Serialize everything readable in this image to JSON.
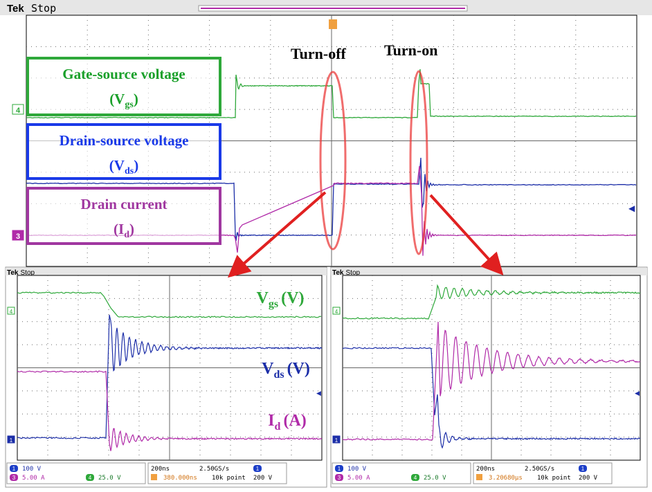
{
  "top": {
    "brand": "Tek",
    "state": "Stop",
    "markers": [
      "4",
      "3"
    ],
    "turn_off": "Turn-off",
    "turn_on": "Turn-on",
    "boxes": [
      {
        "title": "Gate-source voltage",
        "pre": "(V",
        "sub": "gs",
        "post": ")"
      },
      {
        "title": "Drain-source voltage",
        "pre": "(V",
        "sub": "ds",
        "post": ")"
      },
      {
        "title": "Drain current",
        "pre": "(I",
        "sub": "d",
        "post": ")"
      }
    ]
  },
  "panels": [
    {
      "brand": "Tek",
      "state": "Stop",
      "markers": [
        "4",
        "1"
      ],
      "traces": [
        {
          "symbol": "V",
          "sub": "gs",
          "unit": "(V)"
        },
        {
          "symbol": "V",
          "sub": "ds",
          "unit": "(V)"
        },
        {
          "symbol": "I",
          "sub": "d",
          "unit": "(A)"
        }
      ],
      "status": {
        "ch1_id": "1",
        "ch1": "100 V",
        "ch3_id": "3",
        "ch3": "5.00 A",
        "ch4_id": "4",
        "ch4": "25.0 V",
        "timebase": "200ns",
        "rate": "2.50GS/s",
        "trigger_pos": "380.000ns",
        "record": "10k point",
        "trigger_ch": "1",
        "trigger_level": "200 V"
      }
    },
    {
      "brand": "Tek",
      "state": "Stop",
      "markers": [
        "4",
        "1"
      ],
      "traces": [],
      "status": {
        "ch1_id": "1",
        "ch1": "100 V",
        "ch3_id": "3",
        "ch3": "5.00 A",
        "ch4_id": "4",
        "ch4": "25.0 V",
        "timebase": "200ns",
        "rate": "2.50GS/s",
        "trigger_pos": "3.20680µs",
        "record": "10k point",
        "trigger_ch": "1",
        "trigger_level": "200 V"
      }
    }
  ]
}
